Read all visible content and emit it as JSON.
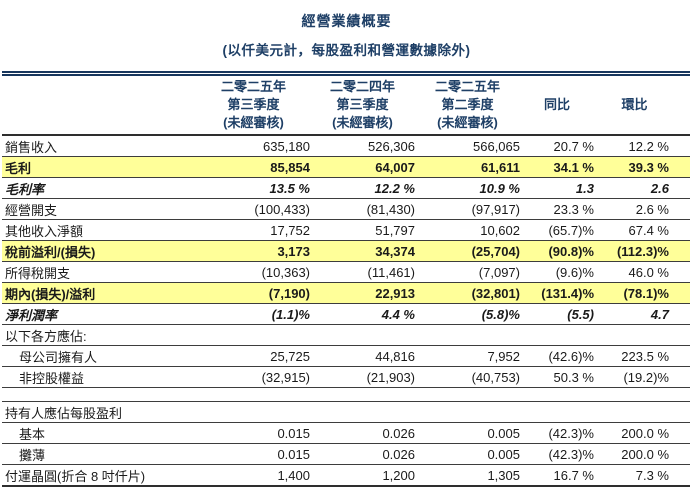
{
  "title": "經營業績概要",
  "subtitle": "(以仟美元計，每股盈利和營運數據除外)",
  "colors": {
    "accent_navy": "#1e3f66",
    "rule_navy": "#17365d",
    "highlight_yellow": "#ffff99",
    "row_border": "#3d3d3d",
    "body_text": "#1a1a1a"
  },
  "table": {
    "columns": [
      {
        "lines": [
          "二零二五年",
          "第三季度",
          "(未經審核)"
        ]
      },
      {
        "lines": [
          "二零二四年",
          "第三季度",
          "(未經審核)"
        ]
      },
      {
        "lines": [
          "二零二五年",
          "第二季度",
          "(未經審核)"
        ]
      },
      {
        "lines": [
          "同比"
        ]
      },
      {
        "lines": [
          "環比"
        ]
      }
    ],
    "rows": [
      {
        "type": "data",
        "label": "銷售收入",
        "values": [
          "635,180",
          "526,306",
          "566,065",
          "20.7 %",
          "12.2 %"
        ],
        "style": "normal",
        "indent": false
      },
      {
        "type": "data",
        "label": "毛利",
        "values": [
          "85,854",
          "64,007",
          "61,611",
          "34.1 %",
          "39.3 %"
        ],
        "style": "highlight",
        "indent": false
      },
      {
        "type": "data",
        "label": "毛利率",
        "values": [
          "13.5 %",
          "12.2 %",
          "10.9 %",
          "1.3",
          "2.6"
        ],
        "style": "bold_italic",
        "indent": false
      },
      {
        "type": "data",
        "label": "經營開支",
        "values": [
          "(100,433)",
          "(81,430)",
          "(97,917)",
          "23.3 %",
          "2.6 %"
        ],
        "style": "normal",
        "indent": false
      },
      {
        "type": "data",
        "label": "其他收入淨額",
        "values": [
          "17,752",
          "51,797",
          "10,602",
          "(65.7)%",
          "67.4 %"
        ],
        "style": "normal",
        "indent": false
      },
      {
        "type": "data",
        "label": "稅前溢利/(損失)",
        "values": [
          "3,173",
          "34,374",
          "(25,704)",
          "(90.8)%",
          "(112.3)%"
        ],
        "style": "highlight",
        "indent": false
      },
      {
        "type": "data",
        "label": "所得稅開支",
        "values": [
          "(10,363)",
          "(11,461)",
          "(7,097)",
          "(9.6)%",
          "46.0 %"
        ],
        "style": "normal",
        "indent": false
      },
      {
        "type": "data",
        "label": "期內(損失)/溢利",
        "values": [
          "(7,190)",
          "22,913",
          "(32,801)",
          "(131.4)%",
          "(78.1)%"
        ],
        "style": "highlight",
        "indent": false
      },
      {
        "type": "data",
        "label": "淨利潤率",
        "values": [
          "(1.1)%",
          "4.4 %",
          "(5.8)%",
          "(5.5)",
          "4.7"
        ],
        "style": "bold_italic",
        "indent": false
      },
      {
        "type": "data",
        "label": "以下各方應佔:",
        "values": [
          "",
          "",
          "",
          "",
          ""
        ],
        "style": "normal",
        "indent": false
      },
      {
        "type": "data",
        "label": "母公司擁有人",
        "values": [
          "25,725",
          "44,816",
          "7,952",
          "(42.6)%",
          "223.5 %"
        ],
        "style": "normal",
        "indent": true
      },
      {
        "type": "data",
        "label": "非控股權益",
        "values": [
          "(32,915)",
          "(21,903)",
          "(40,753)",
          "50.3 %",
          "(19.2)%"
        ],
        "style": "normal",
        "indent": true
      },
      {
        "type": "gap"
      },
      {
        "type": "data",
        "label": "持有人應佔每股盈利",
        "values": [
          "",
          "",
          "",
          "",
          ""
        ],
        "style": "normal",
        "indent": false,
        "top_border": true
      },
      {
        "type": "data",
        "label": "基本",
        "values": [
          "0.015",
          "0.026",
          "0.005",
          "(42.3)%",
          "200.0 %"
        ],
        "style": "normal",
        "indent": true
      },
      {
        "type": "data",
        "label": "攤薄",
        "values": [
          "0.015",
          "0.026",
          "0.005",
          "(42.3)%",
          "200.0 %"
        ],
        "style": "normal",
        "indent": true
      },
      {
        "type": "data",
        "label": "付運晶圓(折合 8 吋仟片)",
        "values": [
          "1,400",
          "1,200",
          "1,305",
          "16.7 %",
          "7.3 %"
        ],
        "style": "normal",
        "indent": false
      }
    ]
  }
}
